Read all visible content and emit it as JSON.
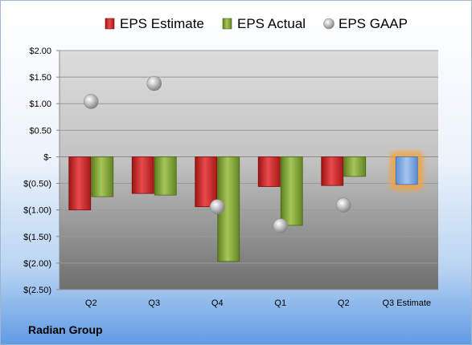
{
  "company": "Radian Group",
  "chart_data": {
    "type": "bar",
    "categories": [
      "Q2",
      "Q3",
      "Q4",
      "Q1",
      "Q2",
      "Q3 Estimate"
    ],
    "series": [
      {
        "name": "EPS Estimate",
        "values": [
          -1.0,
          -0.69,
          -0.94,
          -0.56,
          -0.54,
          -0.52
        ],
        "color": "#d42a2a"
      },
      {
        "name": "EPS Actual",
        "values": [
          -0.75,
          -0.72,
          -1.97,
          -1.29,
          -0.37,
          null
        ],
        "color": "#8cb03c"
      },
      {
        "name": "EPS GAAP",
        "values": [
          1.04,
          1.38,
          -0.94,
          -1.3,
          -0.91,
          null
        ],
        "color": "#b3b3b3"
      }
    ],
    "estimate_bar_color": "#7aa7e0",
    "ylim": [
      -2.5,
      2.0
    ],
    "yticks": [
      2.0,
      1.5,
      1.0,
      0.5,
      0,
      -0.5,
      -1.0,
      -1.5,
      -2.0,
      -2.5
    ],
    "ytick_labels": [
      "$2.00",
      "$1.50",
      "$1.00",
      "$0.50",
      "$-",
      "$(0.50)",
      "$(1.00)",
      "$(1.50)",
      "$(2.00)",
      "$(2.50)"
    ],
    "grid": true,
    "legend": "top"
  }
}
